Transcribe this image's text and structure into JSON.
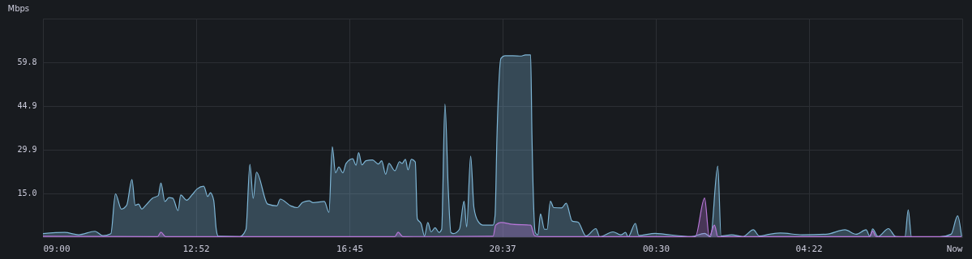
{
  "chart_data": {
    "type": "area",
    "ylabel": "Mbps",
    "xlim": [
      "--05-01T09:00",
      "--05-02T08:15"
    ],
    "ylim": [
      0,
      74.7
    ],
    "xticks": [
      {
        "value": "--05-01T09:00",
        "label": "09:00"
      },
      {
        "value": "--05-01T12:52",
        "label": "12:52"
      },
      {
        "value": "--05-01T16:45",
        "label": "16:45"
      },
      {
        "value": "--05-01T20:37",
        "label": "20:37"
      },
      {
        "value": "--05-02T00:30",
        "label": "00:30"
      },
      {
        "value": "--05-02T04:22",
        "label": "04:22"
      },
      {
        "value": "--05-02T08:15",
        "label": "Now"
      }
    ],
    "yticks": [
      {
        "value": 0,
        "label": null
      },
      {
        "value": 14.95,
        "label": "15.0"
      },
      {
        "value": 29.9,
        "label": "29.9"
      },
      {
        "value": 44.85,
        "label": "44.9"
      },
      {
        "value": 59.8,
        "label": "59.8"
      }
    ],
    "grid": true,
    "series": [
      {
        "color": "#7eb6d6",
        "x": [
          "--05-01T09:00",
          "--05-01T09:33",
          "--05-01T09:54",
          "--05-01T10:19",
          "--05-01T10:31",
          "--05-01T10:43",
          "--05-01T10:50",
          "--05-01T10:59",
          "--05-01T11:07",
          "--05-01T11:15",
          "--05-01T11:20",
          "--05-01T11:25",
          "--05-01T11:30",
          "--05-01T11:36",
          "--05-01T11:46",
          "--05-01T11:55",
          "--05-01T11:59",
          "--05-01T12:05",
          "--05-01T12:11",
          "--05-01T12:17",
          "--05-01T12:25",
          "--05-01T12:29",
          "--05-01T12:38",
          "--05-01T12:46",
          "--05-01T12:54",
          "--05-01T13:04",
          "--05-01T13:10",
          "--05-01T13:14",
          "--05-01T13:19",
          "--05-01T13:23",
          "--05-01T13:26",
          "--05-01T13:59",
          "--05-01T14:08",
          "--05-01T14:14",
          "--05-01T14:19",
          "--05-01T14:24",
          "--05-01T14:41",
          "--05-01T14:55",
          "--05-01T15:00",
          "--05-01T15:16",
          "--05-01T15:26",
          "--05-01T15:34",
          "--05-01T15:44",
          "--05-01T15:50",
          "--05-01T16:07",
          "--05-01T16:14",
          "--05-01T16:19",
          "--05-01T16:24",
          "--05-01T16:29",
          "--05-01T16:35",
          "--05-01T16:40",
          "--05-01T16:50",
          "--05-01T16:55",
          "--05-01T16:59",
          "--05-01T17:04",
          "--05-01T17:10",
          "--05-01T17:20",
          "--05-01T17:29",
          "--05-01T17:34",
          "--05-01T17:40",
          "--05-01T17:45",
          "--05-01T17:54",
          "--05-01T18:01",
          "--05-01T18:05",
          "--05-01T18:10",
          "--05-01T18:14",
          "--05-01T18:19",
          "--05-01T18:25",
          "--05-01T18:28",
          "--05-01T18:34",
          "--05-01T18:39",
          "--05-01T18:44",
          "--05-01T18:49",
          "--05-01T18:55",
          "--05-01T19:01",
          "--05-01T19:05",
          "--05-01T19:10",
          "--05-01T19:15",
          "--05-01T19:19",
          "--05-01T19:23",
          "--05-01T19:32",
          "--05-01T19:39",
          "--05-01T19:43",
          "--05-01T19:49",
          "--05-01T19:54",
          "--05-01T20:00",
          "--05-01T20:08",
          "--05-01T20:23",
          "--05-01T20:26",
          "--05-01T20:29",
          "--05-01T20:35",
          "--05-01T20:41",
          "--05-01T20:53",
          "--05-01T21:06",
          "--05-01T21:12",
          "--05-01T21:20",
          "--05-01T21:22",
          "--05-01T21:27",
          "--05-01T21:31",
          "--05-01T21:35",
          "--05-01T21:41",
          "--05-01T21:45",
          "--05-01T21:50",
          "--05-01T21:55",
          "--05-01T22:07",
          "--05-01T22:14",
          "--05-01T22:23",
          "--05-01T22:32",
          "--05-01T22:44",
          "--05-01T22:59",
          "--05-01T23:05",
          "--05-01T23:25",
          "--05-01T23:37",
          "--05-01T23:44",
          "--05-01T23:48",
          "--05-01T23:59",
          "--05-02T00:04",
          "--05-02T00:29",
          "--05-02T00:43",
          "--05-02T01:24",
          "--05-02T01:44",
          "--05-02T01:53",
          "--05-02T02:04",
          "--05-02T02:09",
          "--05-02T02:25",
          "--05-02T02:42",
          "--05-02T02:58",
          "--05-02T03:07",
          "--05-02T03:23",
          "--05-02T03:39",
          "--05-02T04:12",
          "--05-02T04:49",
          "--05-02T05:17",
          "--05-02T05:34",
          "--05-02T05:49",
          "--05-02T05:55",
          "--05-02T05:59",
          "--05-02T06:07",
          "--05-02T06:23",
          "--05-02T06:34",
          "--05-02T06:48",
          "--05-02T06:53",
          "--05-02T06:58",
          "--05-02T07:41",
          "--05-02T07:58",
          "--05-02T08:08",
          "--05-02T08:14"
        ],
        "values": [
          1.2,
          1.6,
          0.8,
          2.0,
          0.5,
          1.2,
          14.8,
          9.6,
          10.9,
          19.7,
          10.9,
          11.3,
          9.6,
          10.9,
          13.3,
          14.2,
          18.5,
          12.2,
          13.5,
          13.3,
          9.1,
          14.4,
          12.6,
          14.4,
          16.5,
          17.4,
          13.9,
          15.2,
          12.7,
          2.6,
          0.3,
          0.2,
          2.6,
          24.9,
          13.3,
          22.2,
          11.3,
          10.7,
          13.0,
          10.7,
          10.1,
          11.9,
          12.4,
          11.8,
          12.2,
          8.5,
          30.9,
          22.0,
          24.0,
          22.0,
          25.2,
          26.8,
          24.6,
          28.9,
          24.7,
          26.1,
          26.4,
          25.0,
          26.1,
          21.5,
          25.2,
          22.7,
          25.8,
          25.2,
          26.6,
          23.0,
          26.6,
          25.7,
          6.3,
          4.5,
          0.4,
          5.0,
          1.8,
          3.2,
          1.6,
          2.7,
          45.5,
          16.6,
          1.6,
          1.2,
          2.7,
          12.3,
          3.5,
          27.7,
          10.1,
          5.5,
          4.1,
          4.1,
          7.3,
          34.9,
          61.1,
          62.0,
          62.0,
          61.9,
          62.3,
          62.3,
          34.9,
          1.6,
          0.7,
          7.9,
          2.7,
          2.7,
          12.3,
          10.1,
          10.0,
          11.6,
          5.5,
          5.1,
          0.4,
          2.9,
          0.1,
          1.8,
          0.8,
          1.6,
          0.1,
          4.7,
          0.6,
          1.3,
          1.0,
          0.2,
          1.3,
          0.1,
          24.3,
          0.4,
          0.8,
          0.2,
          2.5,
          0.4,
          1.0,
          1.4,
          0.8,
          1.0,
          2.5,
          1.0,
          2.5,
          0.2,
          2.8,
          0.2,
          2.9,
          0.2,
          0.1,
          9.3,
          0.1,
          0.1,
          1.0,
          7.3,
          0.2
        ]
      },
      {
        "color": "#b877d9",
        "x": [
          "--05-01T09:00",
          "--05-01T11:54",
          "--05-01T11:59",
          "--05-01T12:06",
          "--05-01T17:54",
          "--05-01T17:59",
          "--05-01T18:06",
          "--05-01T20:23",
          "--05-01T20:27",
          "--05-01T20:35",
          "--05-01T20:53",
          "--05-01T21:20",
          "--05-01T21:26",
          "--05-01T21:33",
          "--05-02T01:30",
          "--05-02T01:44",
          "--05-02T01:51",
          "--05-02T01:59",
          "--05-02T02:04",
          "--05-02T05:54",
          "--05-02T05:59",
          "--05-02T06:04",
          "--05-02T08:14"
        ],
        "values": [
          0.3,
          0.2,
          1.7,
          0.2,
          0.2,
          1.7,
          0.2,
          0.3,
          4.1,
          5.0,
          4.4,
          4.1,
          0.5,
          0.2,
          0.2,
          13.4,
          0.2,
          4.1,
          0.2,
          0.2,
          2.1,
          0.2,
          0.2
        ]
      }
    ]
  }
}
